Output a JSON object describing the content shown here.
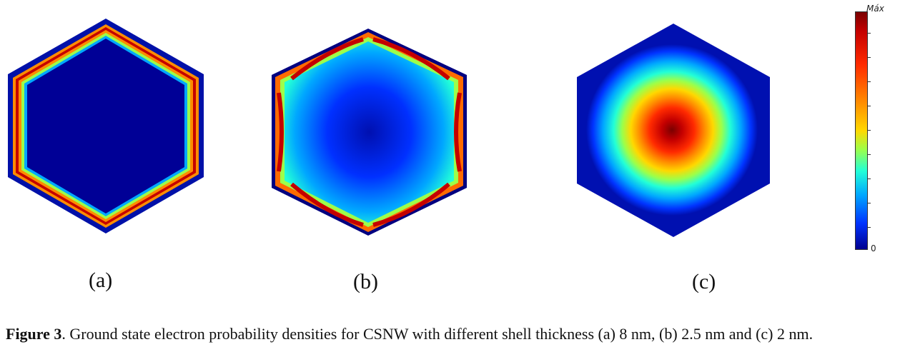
{
  "panels": [
    {
      "label": "(a)",
      "shell_thickness": "8 nm"
    },
    {
      "label": "(b)",
      "shell_thickness": "2.5 nm"
    },
    {
      "label": "(c)",
      "shell_thickness": "2 nm"
    }
  ],
  "colorbar": {
    "max_label": "Máx",
    "min_label": "0",
    "colormap": "jet"
  },
  "caption": {
    "figure_label": "Figure 3",
    "text": ". Ground state electron probability densities for CSNW with different shell thickness (a) 8 nm, (b) 2.5 nm and (c) 2 nm."
  },
  "colors": {
    "low": "#00008f",
    "mid": "#22ffd7",
    "high": "#7a0000"
  }
}
